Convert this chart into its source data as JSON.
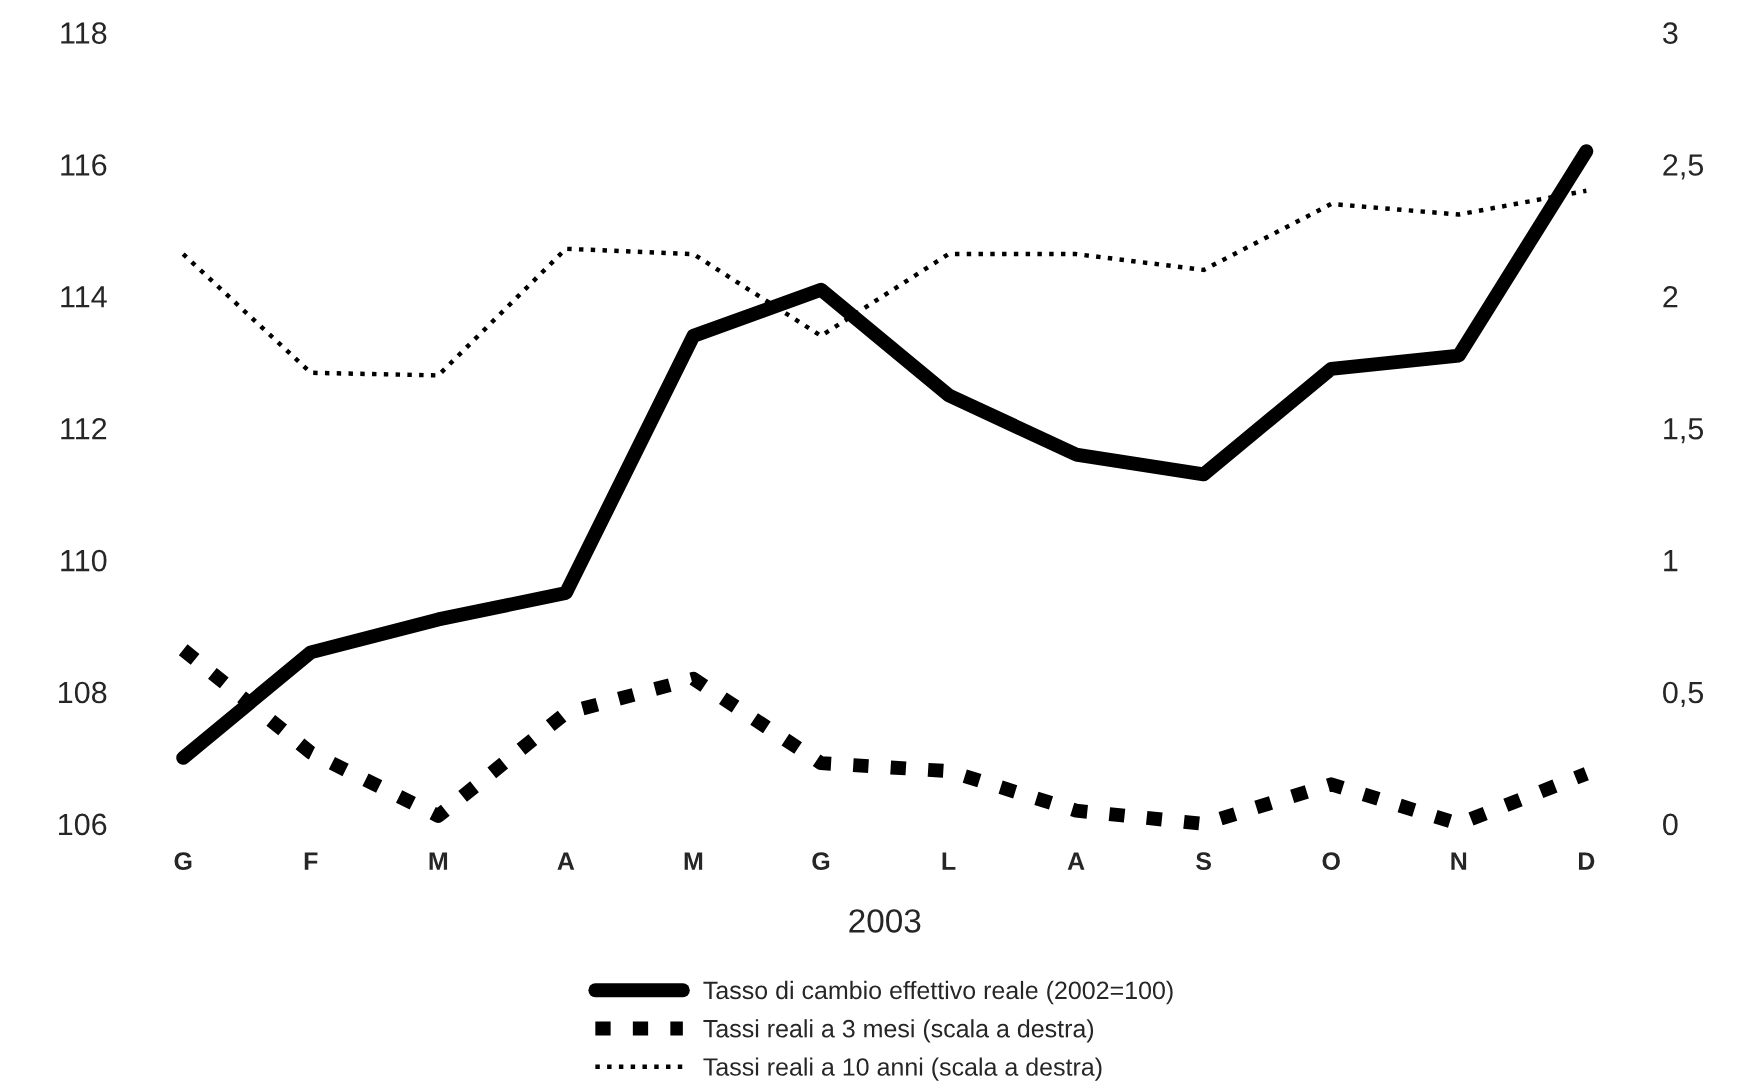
{
  "chart_data": {
    "type": "line",
    "xlabel": "2003",
    "categories": [
      "G",
      "F",
      "M",
      "A",
      "M",
      "G",
      "L",
      "A",
      "S",
      "O",
      "N",
      "D"
    ],
    "series": [
      {
        "name": "Tasso di cambio effettivo reale (2002=100)",
        "color": "#000000",
        "line_style": "solid",
        "values": [
          107.0,
          108.6,
          109.1,
          109.5,
          113.4,
          114.1,
          112.5,
          111.6,
          111.3,
          112.9,
          113.1,
          116.2
        ]
      },
      {
        "name": "Tassi reali a 3 mesi (scala a destra)",
        "color": "#000000",
        "line_style": "dotted",
        "axis": "y2",
        "values": [
          0.66,
          0.27,
          0.03,
          0.42,
          0.55,
          0.23,
          0.2,
          0.05,
          0.0,
          0.15,
          0.0,
          0.19
        ]
      },
      {
        "name": "Tassi reali a 10 anni (scala a destra)",
        "color": "#000000",
        "line_style": "dotted",
        "axis": "y2",
        "values": [
          2.16,
          1.71,
          1.7,
          2.18,
          2.16,
          1.85,
          2.16,
          2.16,
          2.1,
          2.35,
          2.31,
          2.4
        ]
      }
    ],
    "ylim": [
      106,
      118
    ],
    "yticks": [
      106,
      108,
      110,
      112,
      114,
      116,
      118
    ],
    "y2lim": [
      0,
      3
    ],
    "y2ticks": [
      {
        "value": 0,
        "label": "0"
      },
      {
        "value": 0.5,
        "label": "0,5"
      },
      {
        "value": 1,
        "label": "1"
      },
      {
        "value": 1.5,
        "label": "1,5"
      },
      {
        "value": 2,
        "label": "2"
      },
      {
        "value": 2.5,
        "label": "2,5"
      },
      {
        "value": 3,
        "label": "3"
      }
    ],
    "grid": false,
    "legend": "bottom",
    "marker": "none"
  }
}
